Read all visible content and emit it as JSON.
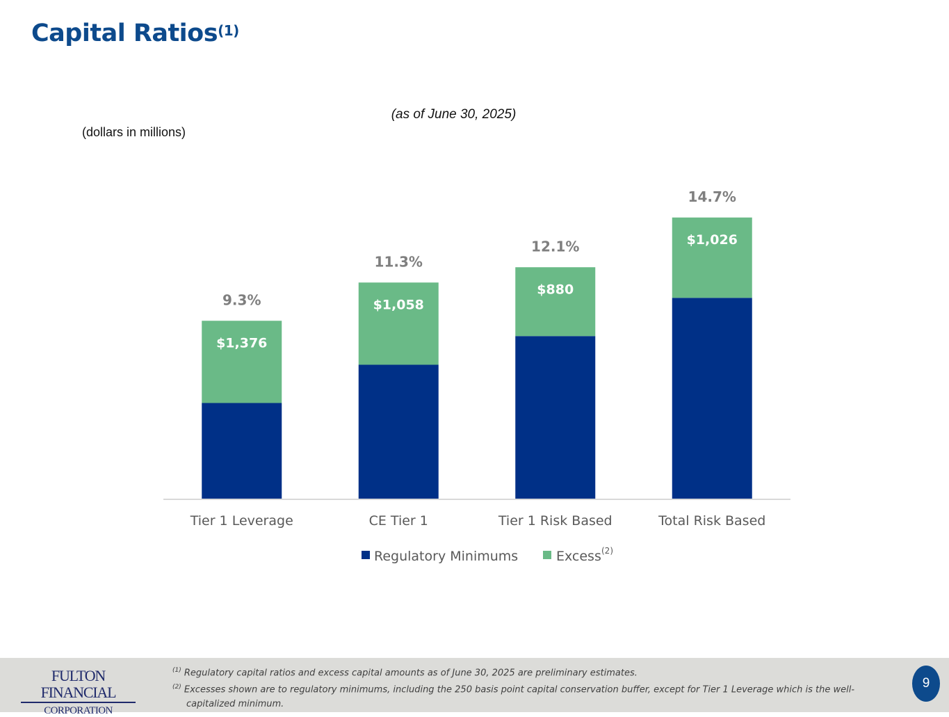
{
  "header": {
    "title": "Capital Ratios",
    "title_sup": "(1)",
    "as_of": "(as of June 30, 2025)",
    "units": "(dollars in millions)"
  },
  "chart_data": {
    "type": "bar",
    "stacked": true,
    "categories": [
      "Tier 1 Leverage",
      "CE Tier 1",
      "Tier 1 Risk Based",
      "Total Risk Based"
    ],
    "totals": [
      "9.3%",
      "11.3%",
      "12.1%",
      "14.7%"
    ],
    "total_values": [
      9.3,
      11.3,
      12.1,
      14.7
    ],
    "series": [
      {
        "name": "Regulatory Minimums",
        "values": [
          5.0,
          7.0,
          8.5,
          10.5
        ],
        "color": "#003087"
      },
      {
        "name": "Excess",
        "name_sup": "(2)",
        "values": [
          4.3,
          4.3,
          3.6,
          4.2
        ],
        "labels": [
          "$1,376",
          "$1,058",
          "$880",
          "$1,026"
        ],
        "color": "#6aba87"
      }
    ],
    "ylim": [
      0,
      16
    ],
    "legend": "bottom",
    "grid": false
  },
  "footer": {
    "logo_line1": "FULTON FINANCIAL",
    "logo_line2": "CORPORATION",
    "note1_sup": "(1)",
    "note1": "Regulatory capital ratios and excess capital amounts as of June 30, 2025 are preliminary estimates.",
    "note2_sup": "(2)",
    "note2a": "Excesses shown are to regulatory minimums, including the 250 basis point capital conservation buffer, except for Tier 1 Leverage which is the well-",
    "note2b": "capitalized minimum.",
    "page_number": "9"
  }
}
